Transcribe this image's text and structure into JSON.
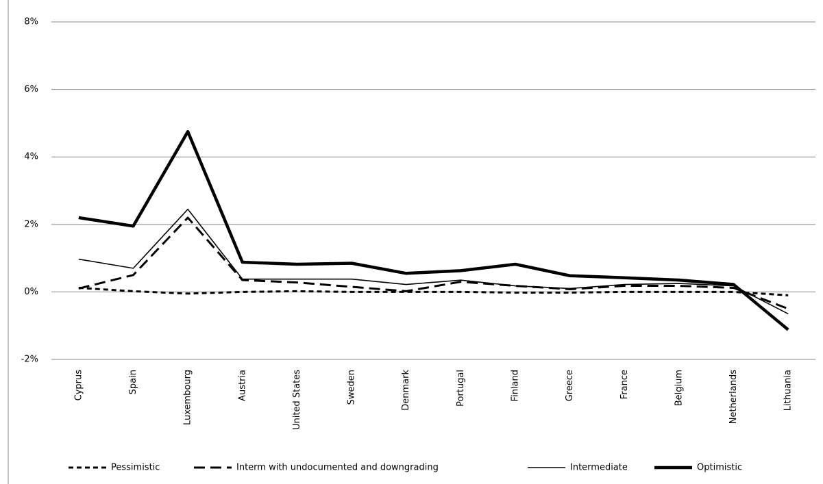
{
  "chart_data": {
    "type": "line",
    "categories": [
      "Cyprus",
      "Spain",
      "Luxembourg",
      "Austria",
      "United States",
      "Sweden",
      "Denmark",
      "Portugal",
      "Finland",
      "Greece",
      "France",
      "Belgium",
      "Netherlands",
      "Lithuania"
    ],
    "series": [
      {
        "name": "Pessimistic",
        "color": "#000000",
        "width": 3,
        "dash": "7 5",
        "values": [
          0.12,
          0.02,
          -0.05,
          0.0,
          0.02,
          0.0,
          0.0,
          0.0,
          -0.02,
          -0.02,
          0.0,
          0.0,
          0.0,
          -0.1
        ]
      },
      {
        "name": "Interm with undocumented and downgrading",
        "color": "#000000",
        "width": 3,
        "dash": "16 8",
        "values": [
          0.1,
          0.5,
          2.2,
          0.35,
          0.28,
          0.15,
          0.02,
          0.3,
          0.18,
          0.08,
          0.18,
          0.18,
          0.12,
          -0.5
        ]
      },
      {
        "name": "Intermediate",
        "color": "#000000",
        "width": 1.6,
        "dash": "none",
        "values": [
          0.97,
          0.7,
          2.45,
          0.38,
          0.38,
          0.38,
          0.22,
          0.35,
          0.18,
          0.1,
          0.22,
          0.25,
          0.18,
          -0.65
        ]
      },
      {
        "name": "Optimistic",
        "color": "#000000",
        "width": 4.5,
        "dash": "none",
        "values": [
          2.2,
          1.95,
          4.75,
          0.88,
          0.82,
          0.85,
          0.55,
          0.63,
          0.82,
          0.48,
          0.42,
          0.35,
          0.22,
          -1.12
        ]
      }
    ],
    "ylim": [
      -2,
      8
    ],
    "yticks": [
      {
        "value": -2,
        "label": "-2%"
      },
      {
        "value": 0,
        "label": "0%"
      },
      {
        "value": 2,
        "label": "2%"
      },
      {
        "value": 4,
        "label": "4%"
      },
      {
        "value": 6,
        "label": "6%"
      },
      {
        "value": 8,
        "label": "8%"
      }
    ],
    "grid": true,
    "legend": "bottom"
  }
}
